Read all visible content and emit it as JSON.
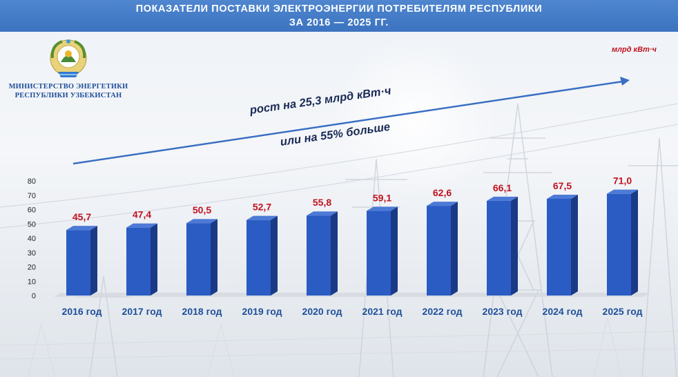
{
  "header": {
    "line1": "ПОКАЗАТЕЛИ ПОСТАВКИ ЭЛЕКТРОЭНЕРГИИ ПОТРЕБИТЕЛЯМ РЕСПУБЛИКИ",
    "line2": "ЗА 2016 — 2025 ГГ."
  },
  "ministry": {
    "line1": "МИНИСТЕРСТВО ЭНЕРГЕТИКИ",
    "line2": "РЕСПУБЛИКИ УЗБЕКИСТАН"
  },
  "unit_label": "млрд кВт·ч",
  "growth": {
    "line1": "рост на  25,3 млрд кВт·ч",
    "line2": "или на 55% больше"
  },
  "colors": {
    "header": "#4a80c9",
    "bar": "#2b5cc4",
    "bar_side": "#1a3a86",
    "bar_top": "#4d7ad6",
    "value_label": "#c1121f",
    "arrow": "#3a6fc2",
    "ministry_text": "#1f4f99"
  },
  "chart_data": {
    "type": "bar",
    "categories": [
      "2016 год",
      "2017 год",
      "2018 год",
      "2019 год",
      "2020 год",
      "2021 год",
      "2022 год",
      "2023 год",
      "2024 год",
      "2025 год"
    ],
    "values": [
      45.7,
      47.4,
      50.5,
      52.7,
      55.8,
      59.1,
      62.6,
      66.1,
      67.5,
      71.0
    ],
    "value_labels": [
      "45,7",
      "47,4",
      "50,5",
      "52,7",
      "55,8",
      "59,1",
      "62,6",
      "66,1",
      "67,5",
      "71,0"
    ],
    "yticks": [
      "0",
      "10",
      "20",
      "30",
      "40",
      "50",
      "60",
      "70",
      "80"
    ],
    "ylim": [
      0,
      80
    ],
    "grid": false,
    "unit": "млрд кВт·ч"
  }
}
